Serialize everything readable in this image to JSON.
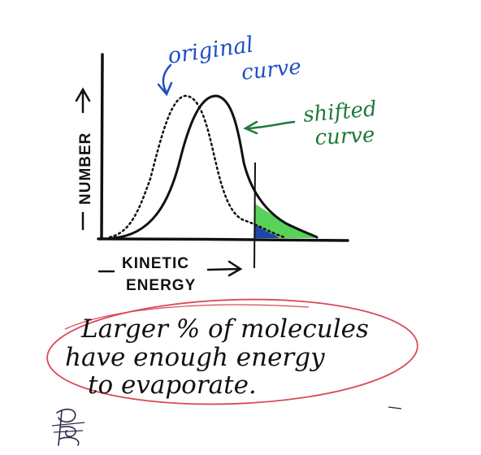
{
  "labels": {
    "original_line1": "original",
    "original_line2": "curve",
    "shifted_line1": "shifted",
    "shifted_line2": "curve",
    "y_axis": "NUMBER",
    "x_axis_line1": "KINETIC",
    "x_axis_line2": "ENERGY"
  },
  "note": {
    "line1": "Larger % of molecules",
    "line2": "have enough energy",
    "line3": "to evaporate."
  },
  "signature": "RC",
  "colors": {
    "ink": "#111111",
    "blue_ink": "#1f4fc4",
    "green_ink": "#1f7a3a",
    "green_fill": "#4fd04f",
    "blue_fill": "#1c3fb0",
    "ellipse": "#d84a5a"
  }
}
